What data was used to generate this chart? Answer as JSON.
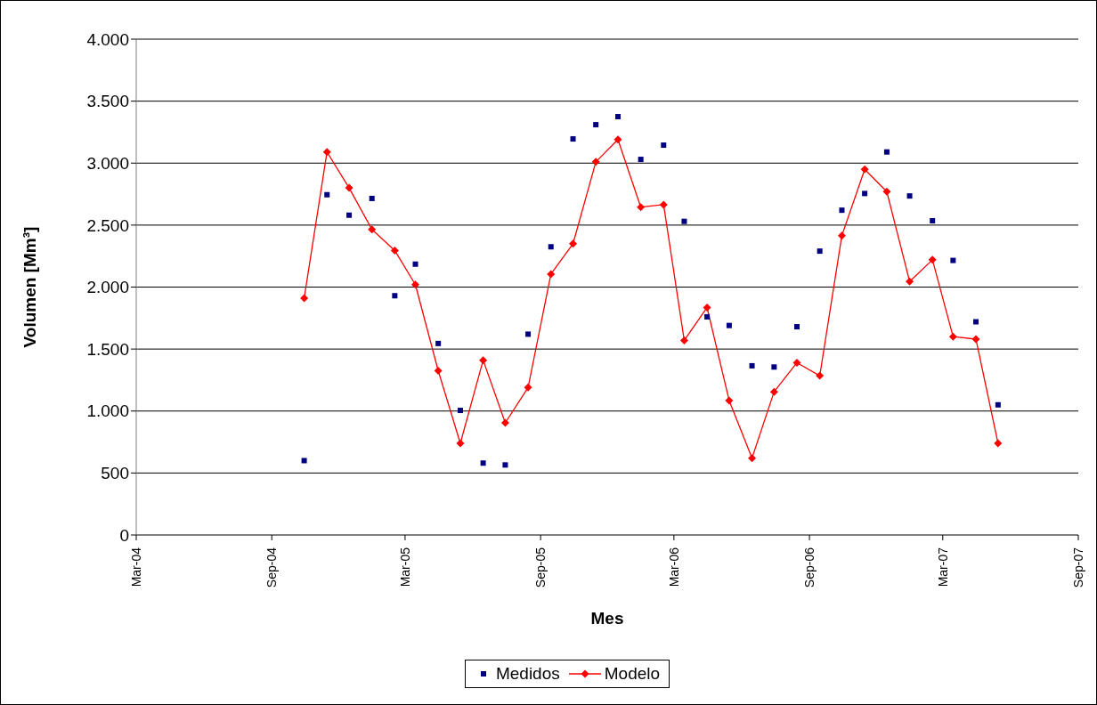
{
  "chart_data": {
    "type": "line",
    "xlabel": "Mes",
    "ylabel": "Volumen [Mm³]",
    "x": [
      "2004-10-15",
      "2004-11-15",
      "2004-12-15",
      "2005-01-15",
      "2005-02-15",
      "2005-03-15",
      "2005-04-15",
      "2005-05-15",
      "2005-06-15",
      "2005-07-15",
      "2005-08-15",
      "2005-09-15",
      "2005-10-15",
      "2005-11-15",
      "2005-12-15",
      "2006-01-15",
      "2006-02-15",
      "2006-03-15",
      "2006-04-15",
      "2006-05-15",
      "2006-06-15",
      "2006-07-15",
      "2006-08-15",
      "2006-09-15",
      "2006-10-15",
      "2006-11-15",
      "2006-12-15",
      "2007-01-15",
      "2007-02-15",
      "2007-03-15",
      "2007-04-15",
      "2007-05-15"
    ],
    "series": [
      {
        "name": "Medidos",
        "type": "scatter",
        "marker": "square",
        "color": "#000080",
        "values": [
          600,
          2745,
          2580,
          2715,
          1930,
          2185,
          1545,
          1005,
          580,
          565,
          1620,
          2325,
          3195,
          3310,
          3375,
          3030,
          3145,
          2530,
          1760,
          1690,
          1365,
          1355,
          1680,
          2290,
          2620,
          2755,
          3090,
          2735,
          2535,
          2215,
          1720,
          1050
        ]
      },
      {
        "name": "Modelo",
        "marker": "diamond",
        "line_style": "solid",
        "color": "#ff0000",
        "values": [
          1910,
          3090,
          2800,
          2465,
          2295,
          2020,
          1325,
          740,
          1410,
          905,
          1190,
          2105,
          2350,
          3010,
          3190,
          2645,
          2665,
          1570,
          1835,
          1085,
          620,
          1155,
          1390,
          1285,
          2415,
          2950,
          2770,
          2045,
          2220,
          1600,
          1580,
          740
        ]
      }
    ],
    "xlim": [
      "2004-03-01",
      "2007-09-01"
    ],
    "xticks": [
      {
        "value": "2004-03-01",
        "label": "Mar-04"
      },
      {
        "value": "2004-09-01",
        "label": "Sep-04"
      },
      {
        "value": "2005-03-01",
        "label": "Mar-05"
      },
      {
        "value": "2005-09-01",
        "label": "Sep-05"
      },
      {
        "value": "2006-03-01",
        "label": "Mar-06"
      },
      {
        "value": "2006-09-01",
        "label": "Sep-06"
      },
      {
        "value": "2007-03-01",
        "label": "Mar-07"
      },
      {
        "value": "2007-09-01",
        "label": "Sep-07"
      }
    ],
    "ylim": [
      0,
      4000
    ],
    "yticks": [
      0,
      500,
      {
        "value": 1000,
        "label": "1.000"
      },
      {
        "value": 1500,
        "label": "1.500"
      },
      {
        "value": 2000,
        "label": "2.000"
      },
      {
        "value": 2500,
        "label": "2.500"
      },
      {
        "value": 3000,
        "label": "3.000"
      },
      {
        "value": 3500,
        "label": "3.500"
      },
      {
        "value": 4000,
        "label": "4.000"
      }
    ],
    "grid": "y",
    "legend": "bottom"
  }
}
